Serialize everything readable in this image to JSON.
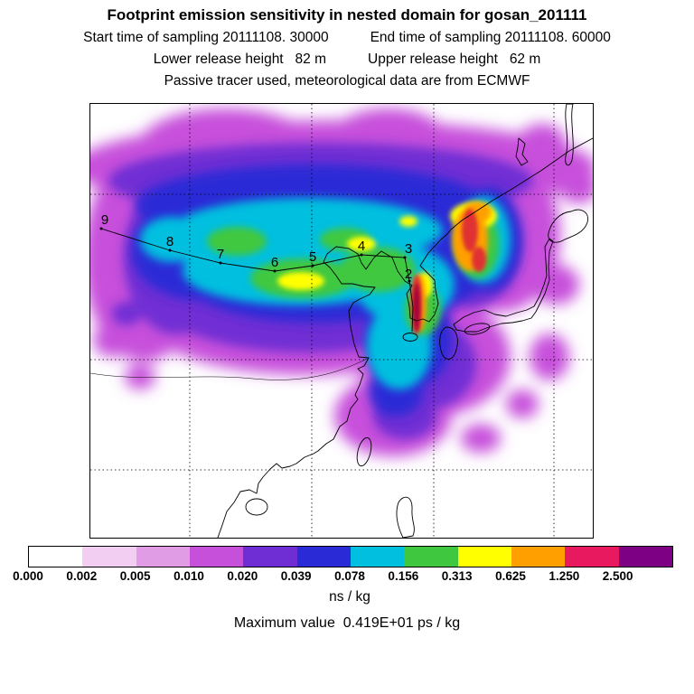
{
  "header": {
    "title": "Footprint emission sensitivity in nested domain for gosan_201111",
    "line2_left": "Start time of sampling 20111108. 30000",
    "line2_right": "End time of sampling 20111108. 60000",
    "line3_left": "Lower release height   82 m",
    "line3_right": "Upper release height   62 m",
    "line4": "Passive tracer used, meteorological data are from ECMWF"
  },
  "map": {
    "trajectory_markers": [
      "9",
      "8",
      "7",
      "6",
      "5",
      "4",
      "3",
      "2"
    ]
  },
  "colorbar": {
    "tick_labels": [
      "0.000",
      "0.002",
      "0.005",
      "0.010",
      "0.020",
      "0.039",
      "0.078",
      "0.156",
      "0.313",
      "0.625",
      "1.250",
      "2.500"
    ],
    "segment_colors": [
      "#FFFFFF",
      "#F2CEF2",
      "#E09DE6",
      "#C750DB",
      "#6F2DD4",
      "#2A2AD6",
      "#00BFDF",
      "#3FC83F",
      "#FFFF00",
      "#FFA000",
      "#E8195F",
      "#7D0084"
    ],
    "units": "ns / kg"
  },
  "footer": {
    "max_value": "Maximum value  0.419E+01 ps / kg"
  },
  "chart_data": {
    "type": "heatmap",
    "title": "Footprint emission sensitivity in nested domain for gosan_201111",
    "station": "gosan_201111",
    "sampling_start": "20111108. 30000",
    "sampling_end": "20111108. 60000",
    "lower_release_height_m": 82,
    "upper_release_height_m": 62,
    "tracer": "Passive tracer",
    "meteorology": "ECMWF",
    "units": "ns / kg",
    "levels": [
      0.0,
      0.002,
      0.005,
      0.01,
      0.02,
      0.039,
      0.078,
      0.156,
      0.313,
      0.625,
      1.25,
      2.5
    ],
    "level_colors": [
      "#FFFFFF",
      "#F2CEF2",
      "#E09DE6",
      "#C750DB",
      "#6F2DD4",
      "#2A2AD6",
      "#00BFDF",
      "#3FC83F",
      "#FFFF00",
      "#FFA000",
      "#E8195F",
      "#7D0084"
    ],
    "maximum_value": "0.419E+01 ps / kg",
    "back_trajectory_day_labels": [
      9,
      8,
      7,
      6,
      5,
      4,
      3,
      2
    ],
    "region": "East Asia (China, Korea, Japan) with sensitivity maximum converging near the receptor south-west of Korea",
    "legend_position": "bottom colorbar",
    "grid": "dashed lat/lon gridlines"
  }
}
